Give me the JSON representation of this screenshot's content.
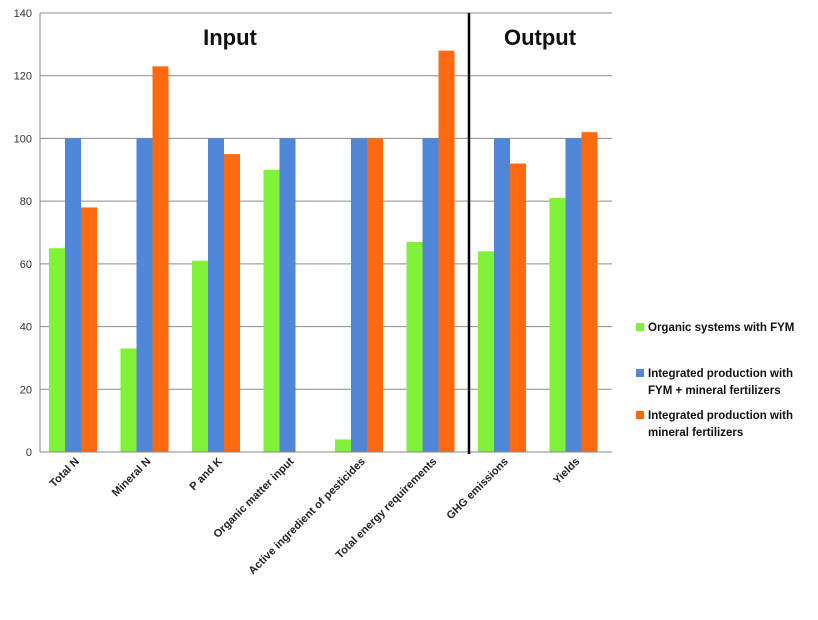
{
  "chart_data": {
    "type": "bar",
    "categories": [
      "Total N",
      "Mineral N",
      "P and K",
      "Organic matter input",
      "Active ingredient of pesticides",
      "Total energy requirements",
      "GHG emissions",
      "Yields"
    ],
    "series": [
      {
        "name": "Organic systems with FYM",
        "color": "#80f23a",
        "values": [
          65,
          33,
          61,
          90,
          4,
          67,
          64,
          81
        ]
      },
      {
        "name": "Integrated production with FYM + mineral fertilizers",
        "color": "#4f86d6",
        "values": [
          100,
          100,
          100,
          100,
          100,
          100,
          100,
          100
        ]
      },
      {
        "name": "Integrated production with mineral fertilizers",
        "color": "#ff6a10",
        "values": [
          78,
          123,
          95,
          null,
          100,
          128,
          92,
          102
        ]
      }
    ],
    "ylim": [
      0,
      140
    ],
    "yticks": [
      0,
      20,
      40,
      60,
      80,
      100,
      120,
      140
    ],
    "grid": true,
    "legend_position": "right",
    "sections": [
      {
        "label": "Input"
      },
      {
        "label": "Output"
      }
    ],
    "divider_after_category": "Total energy requirements"
  }
}
